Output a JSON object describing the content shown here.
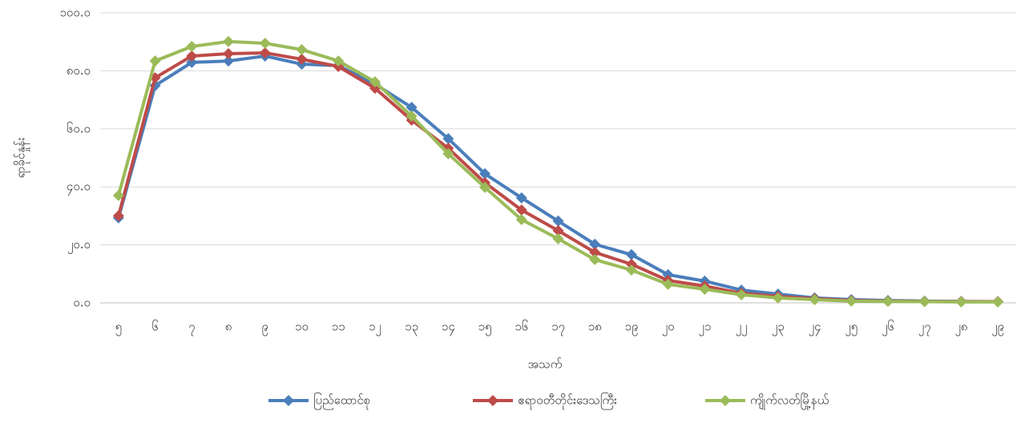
{
  "chart_data": {
    "type": "line",
    "y_label": "ရာခိုင်နှုန်း",
    "x_label": "အသက်",
    "categories": [
      "၅",
      "၆",
      "၇",
      "၈",
      "၉",
      "၁၀",
      "၁၁",
      "၁၂",
      "၁၃",
      "၁၄",
      "၁၅",
      "၁၆",
      "၁၇",
      "၁၈",
      "၁၉",
      "၂၀",
      "၂၁",
      "၂၂",
      "၂၃",
      "၂၄",
      "၂၅",
      "၂၆",
      "၂၇",
      "၂၈",
      "၂၉"
    ],
    "series": [
      {
        "name": "ပြည်ထောင်စု",
        "color": "#4a7ebb",
        "values": [
          29.3,
          74.9,
          82.9,
          83.4,
          85.1,
          82.3,
          81.8,
          75.4,
          67.4,
          56.6,
          44.5,
          36.2,
          28.2,
          20.2,
          16.6,
          9.7,
          7.5,
          4.4,
          3.0,
          1.7,
          1.1,
          0.8,
          0.6,
          0.5,
          0.4
        ]
      },
      {
        "name": "ဧရာဝတီတိုင်းဒေသကြီး",
        "color": "#be4b48",
        "values": [
          30.0,
          77.6,
          85.1,
          85.9,
          86.2,
          84.0,
          81.5,
          74.0,
          63.0,
          53.3,
          41.4,
          32.0,
          24.9,
          17.4,
          13.3,
          7.7,
          5.8,
          3.3,
          2.2,
          1.4,
          0.8,
          0.6,
          0.5,
          0.4,
          0.4
        ]
      },
      {
        "name": "ကျိုက်လတ်မြို့နယ်",
        "color": "#9bbb59",
        "values": [
          37.0,
          83.4,
          88.4,
          90.1,
          89.5,
          87.3,
          83.4,
          76.2,
          64.4,
          51.4,
          39.8,
          28.7,
          22.1,
          14.9,
          11.3,
          6.4,
          4.7,
          2.8,
          1.7,
          1.1,
          0.6,
          0.5,
          0.4,
          0.3,
          0.3
        ]
      }
    ],
    "ylim": [
      0,
      100
    ],
    "yticks": [
      {
        "value": 0,
        "label": "၀.၀"
      },
      {
        "value": 20,
        "label": "၂၀.၀"
      },
      {
        "value": 40,
        "label": "၄၀.၀"
      },
      {
        "value": 60,
        "label": "၆၀.၀"
      },
      {
        "value": 80,
        "label": "၈၀.၀"
      },
      {
        "value": 100,
        "label": "၁၀၀.၀"
      }
    ],
    "grid": true,
    "legend": "bottom"
  }
}
